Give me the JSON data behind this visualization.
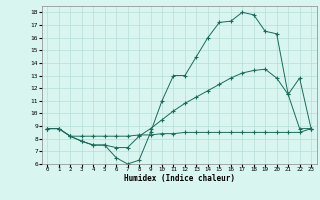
{
  "xlabel": "Humidex (Indice chaleur)",
  "bg_color": "#d8f5f0",
  "grid_color": "#b8ddd8",
  "line_color": "#1a6b5a",
  "xlim": [
    -0.5,
    23.5
  ],
  "ylim": [
    6,
    18.5
  ],
  "xticks": [
    0,
    1,
    2,
    3,
    4,
    5,
    6,
    7,
    8,
    9,
    10,
    11,
    12,
    13,
    14,
    15,
    16,
    17,
    18,
    19,
    20,
    21,
    22,
    23
  ],
  "yticks": [
    6,
    7,
    8,
    9,
    10,
    11,
    12,
    13,
    14,
    15,
    16,
    17,
    18
  ],
  "line1_x": [
    0,
    1,
    2,
    3,
    4,
    5,
    6,
    7,
    8,
    9,
    10,
    11,
    12,
    13,
    14,
    15,
    16,
    17,
    18,
    19,
    20,
    21,
    22,
    23
  ],
  "line1_y": [
    8.8,
    8.8,
    8.2,
    7.8,
    7.5,
    7.5,
    6.5,
    6.0,
    6.3,
    8.5,
    11.0,
    13.0,
    13.0,
    14.5,
    16.0,
    17.2,
    17.3,
    18.0,
    17.8,
    16.5,
    16.3,
    11.5,
    12.8,
    8.8
  ],
  "line2_x": [
    0,
    1,
    2,
    3,
    4,
    5,
    6,
    7,
    8,
    9,
    10,
    11,
    12,
    13,
    14,
    15,
    16,
    17,
    18,
    19,
    20,
    21,
    22,
    23
  ],
  "line2_y": [
    8.8,
    8.8,
    8.2,
    7.8,
    7.5,
    7.5,
    7.3,
    7.3,
    8.2,
    8.8,
    9.5,
    10.2,
    10.8,
    11.3,
    11.8,
    12.3,
    12.8,
    13.2,
    13.4,
    13.5,
    12.8,
    11.5,
    8.8,
    8.8
  ],
  "line3_x": [
    0,
    1,
    2,
    3,
    4,
    5,
    6,
    7,
    8,
    9,
    10,
    11,
    12,
    13,
    14,
    15,
    16,
    17,
    18,
    19,
    20,
    21,
    22,
    23
  ],
  "line3_y": [
    8.8,
    8.8,
    8.2,
    8.2,
    8.2,
    8.2,
    8.2,
    8.2,
    8.3,
    8.3,
    8.4,
    8.4,
    8.5,
    8.5,
    8.5,
    8.5,
    8.5,
    8.5,
    8.5,
    8.5,
    8.5,
    8.5,
    8.5,
    8.8
  ]
}
